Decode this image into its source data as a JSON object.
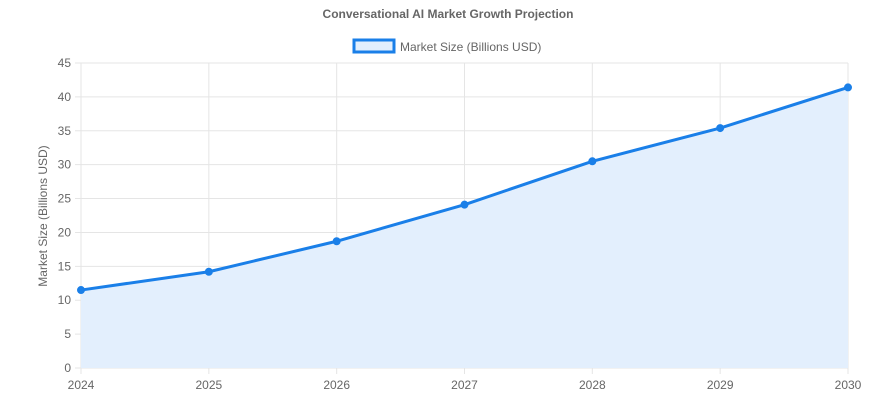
{
  "chart_data": {
    "type": "area",
    "title": "Conversational AI Market Growth Projection",
    "x": [
      "2024",
      "2025",
      "2026",
      "2027",
      "2028",
      "2029",
      "2030"
    ],
    "series": [
      {
        "name": "Market Size (Billions USD)",
        "values": [
          11.5,
          14.2,
          18.7,
          24.1,
          30.5,
          35.4,
          41.4
        ],
        "color": "#1a7fe8",
        "fill": "#e3effd"
      }
    ],
    "xlabel": "",
    "ylabel": "Market Size (Billions USD)",
    "ylim": [
      0,
      45
    ],
    "yticks": [
      "0",
      "5",
      "10",
      "15",
      "20",
      "25",
      "30",
      "35",
      "40",
      "45"
    ],
    "grid": true,
    "legend_position": "top"
  }
}
